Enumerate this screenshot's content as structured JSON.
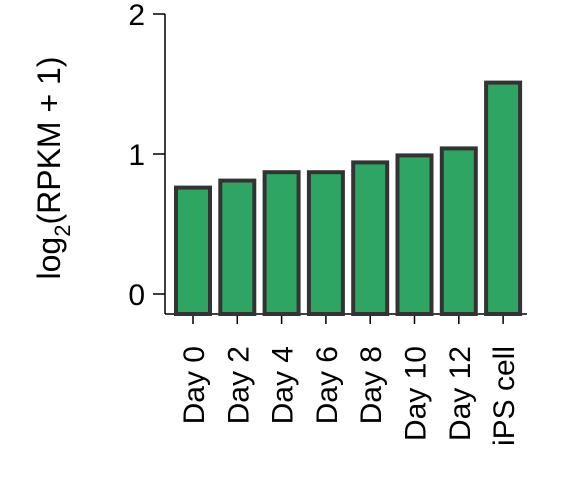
{
  "chart_data": {
    "type": "bar",
    "categories": [
      "Day 0",
      "Day 2",
      "Day 4",
      "Day 6",
      "Day 8",
      "Day 10",
      "Day 12",
      "iPS cell"
    ],
    "values": [
      0.76,
      0.81,
      0.87,
      0.87,
      0.94,
      0.99,
      1.04,
      1.51
    ],
    "ylabel_main": "log",
    "ylabel_sub": "2",
    "ylabel_rest": "(RPKM + 1)",
    "xlabel": "",
    "ylim": [
      0,
      2
    ],
    "yticks": [
      0,
      1,
      2
    ],
    "grid": false,
    "bar_color": "#2fa563",
    "bar_edge_color": "#333333"
  }
}
